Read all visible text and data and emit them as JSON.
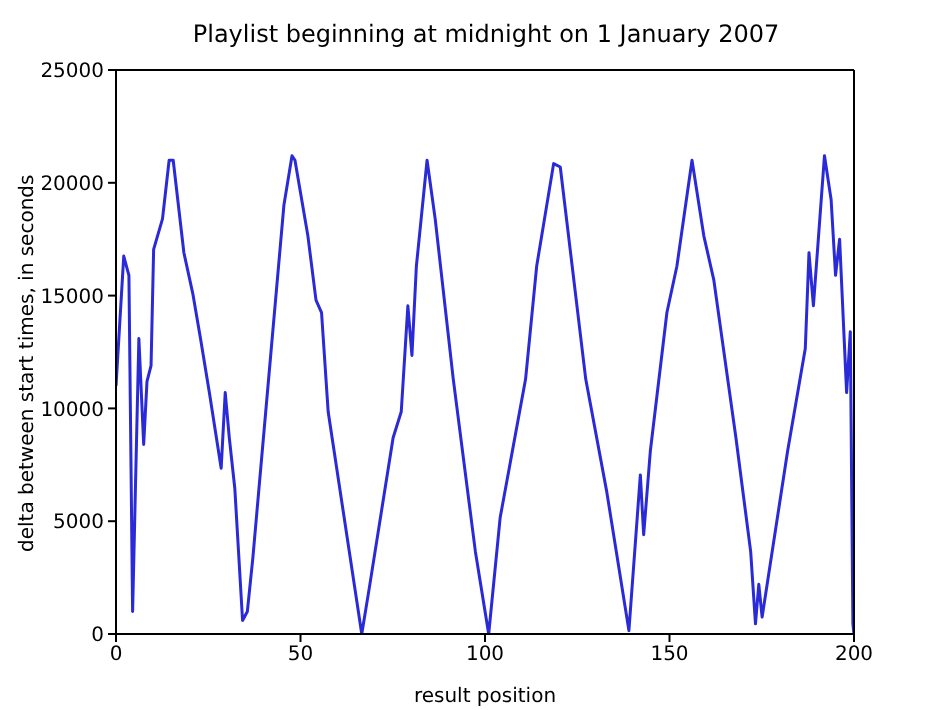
{
  "chart_data": {
    "type": "line",
    "title": "Playlist beginning at midnight on 1 January 2007",
    "xlabel": "result position",
    "ylabel": "delta between start times, in seconds",
    "x": [
      0,
      2.1,
      3.5,
      4.5,
      6.2,
      7.5,
      8.4,
      9.5,
      10.2,
      12.6,
      14.4,
      15.5,
      18.4,
      20.8,
      22.9,
      25.3,
      28.5,
      29.6,
      30.7,
      32.2,
      34.3,
      35.6,
      37.1,
      42,
      45.5,
      47.7,
      48.5,
      52,
      54.2,
      55.7,
      57.5,
      66.6,
      68.8,
      75.1,
      77.3,
      79.1,
      80.2,
      81.4,
      84.3,
      86.5,
      91.4,
      97.4,
      101,
      104.1,
      111,
      114,
      118.6,
      120.4,
      127.3,
      133,
      139,
      142.1,
      143,
      144.8,
      149.3,
      152,
      156.1,
      159.3,
      162,
      168,
      172,
      173.3,
      174.2,
      175.1,
      182,
      186.8,
      187.8,
      189,
      192,
      193.8,
      195,
      196.1,
      198,
      199,
      199.7,
      200
    ],
    "series": [
      {
        "color": "#2a2ad8",
        "values": [
          11000,
          16750,
          15900,
          1000,
          13100,
          8400,
          11200,
          11900,
          17050,
          18400,
          21000,
          21000,
          16900,
          15100,
          13100,
          10700,
          7350,
          10700,
          8700,
          6450,
          600,
          1000,
          3400,
          12500,
          19000,
          21200,
          21000,
          17650,
          14800,
          14250,
          9850,
          0,
          2200,
          8700,
          9850,
          14550,
          12350,
          16300,
          21000,
          18400,
          11300,
          3650,
          0,
          5150,
          11300,
          16300,
          20850,
          20700,
          11300,
          6300,
          150,
          7050,
          4400,
          8100,
          14250,
          16300,
          21000,
          17650,
          15700,
          8700,
          3650,
          450,
          2200,
          750,
          8100,
          12650,
          16900,
          14550,
          21200,
          19250,
          15900,
          17500,
          10700,
          13400,
          450,
          0
        ]
      }
    ],
    "xlim": [
      0,
      200
    ],
    "xticks": [
      0,
      50,
      100,
      150,
      200
    ],
    "ylim": [
      0,
      25000
    ],
    "yticks": [
      0,
      5000,
      10000,
      15000,
      20000,
      25000
    ],
    "grid": false,
    "legend": false,
    "marker": "none",
    "line_style": "solid"
  }
}
